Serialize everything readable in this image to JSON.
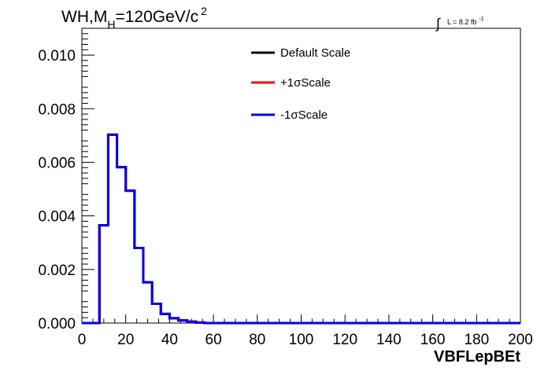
{
  "chart_data": {
    "type": "line",
    "title": {
      "main": "WH,M",
      "sub": "H",
      "rest": "=120GeV/c",
      "sup": "2"
    },
    "lumi": {
      "integral": "∫",
      "label": "L = 8.2 fb",
      "sup": "-1"
    },
    "xlabel": "VBFLepBEt",
    "ylabel": "",
    "xlim": [
      0,
      200
    ],
    "ylim": [
      0,
      0.011
    ],
    "x_ticks": [
      "0",
      "20",
      "40",
      "60",
      "80",
      "100",
      "120",
      "140",
      "160",
      "180",
      "200"
    ],
    "y_ticks": [
      "0.000",
      "0.002",
      "0.004",
      "0.006",
      "0.008",
      "0.010"
    ],
    "legend_position": "top-center",
    "grid": false,
    "bin_edges": [
      0,
      4,
      8,
      12,
      16,
      20,
      24,
      28,
      32,
      36,
      40,
      44,
      48,
      52,
      56,
      60,
      64,
      68,
      72,
      76,
      80,
      84,
      88,
      92,
      96,
      100,
      104,
      108,
      112,
      116,
      120,
      124,
      128,
      132,
      136,
      140,
      144,
      148,
      152,
      156,
      160,
      164,
      168,
      172,
      176,
      180,
      184,
      188,
      192,
      196,
      200
    ],
    "series": [
      {
        "name": "Default Scale",
        "color": "#000000",
        "values": [
          0,
          0,
          0.00365,
          0.00703,
          0.00582,
          0.00494,
          0.0028,
          0.00152,
          0.00072,
          0.00034,
          0.00018,
          0.0001,
          5e-05,
          2e-05,
          0,
          0,
          0,
          0,
          0,
          0,
          0,
          0,
          0,
          0,
          0,
          0,
          0,
          0,
          0,
          0,
          0,
          0,
          0,
          0,
          0,
          0,
          0,
          0,
          0,
          0,
          0,
          0,
          0,
          0,
          0,
          0,
          0,
          0,
          0,
          0
        ]
      },
      {
        "name": "+1σScale",
        "color": "#ff0000",
        "values": [
          0,
          0,
          0.00365,
          0.00703,
          0.00582,
          0.00494,
          0.0028,
          0.00152,
          0.00072,
          0.00034,
          0.00018,
          0.0001,
          5e-05,
          2e-05,
          0,
          0,
          0,
          0,
          0,
          0,
          0,
          0,
          0,
          0,
          0,
          0,
          0,
          0,
          0,
          0,
          0,
          0,
          0,
          0,
          0,
          0,
          0,
          0,
          0,
          0,
          0,
          0,
          0,
          0,
          0,
          0,
          0,
          0,
          0,
          0
        ]
      },
      {
        "name": "-1σScale",
        "color": "#0000ee",
        "values": [
          0,
          0,
          0.00365,
          0.00703,
          0.00582,
          0.00494,
          0.0028,
          0.00152,
          0.00072,
          0.00034,
          0.00018,
          0.0001,
          5e-05,
          2e-05,
          0,
          0,
          0,
          0,
          0,
          0,
          0,
          0,
          0,
          0,
          0,
          0,
          0,
          0,
          0,
          0,
          0,
          0,
          0,
          0,
          0,
          0,
          0,
          0,
          0,
          0,
          0,
          0,
          0,
          0,
          0,
          0,
          0,
          0,
          0,
          0
        ]
      }
    ]
  }
}
